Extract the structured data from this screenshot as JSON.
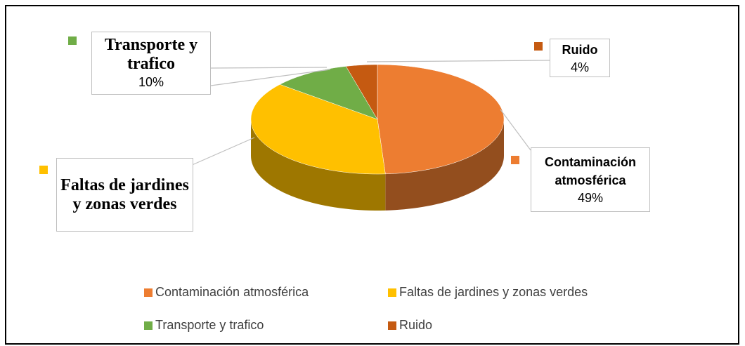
{
  "chart_data": {
    "type": "pie",
    "categories": [
      "Contaminación atmosférica",
      "Faltas de jardines y zonas verdes",
      "Transporte y trafico",
      "Ruido"
    ],
    "values": [
      49,
      37,
      10,
      4
    ],
    "value_labels": [
      "49%",
      null,
      "10%",
      "4%"
    ],
    "colors": [
      "#ed7d31",
      "#ffc000",
      "#70ad47",
      "#c55a11"
    ],
    "legend": "bottom"
  }
}
